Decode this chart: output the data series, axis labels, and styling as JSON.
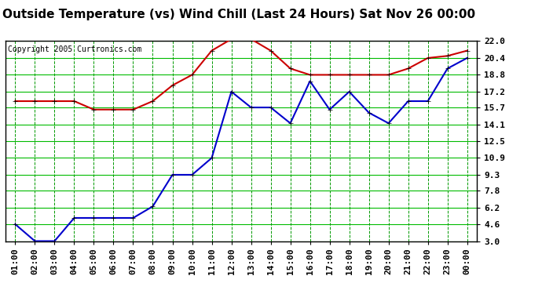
{
  "title": "Outside Temperature (vs) Wind Chill (Last 24 Hours) Sat Nov 26 00:00",
  "copyright": "Copyright 2005 Curtronics.com",
  "x_labels": [
    "01:00",
    "02:00",
    "03:00",
    "04:00",
    "05:00",
    "06:00",
    "07:00",
    "08:00",
    "09:00",
    "10:00",
    "11:00",
    "12:00",
    "13:00",
    "14:00",
    "15:00",
    "16:00",
    "17:00",
    "18:00",
    "19:00",
    "20:00",
    "21:00",
    "22:00",
    "23:00",
    "00:00"
  ],
  "red_data": [
    16.3,
    16.3,
    16.3,
    16.3,
    15.5,
    15.5,
    15.5,
    16.3,
    17.8,
    18.8,
    21.1,
    22.2,
    22.2,
    21.1,
    19.4,
    18.8,
    18.8,
    18.8,
    18.8,
    18.8,
    19.4,
    20.4,
    20.6,
    21.1
  ],
  "blue_data": [
    4.6,
    3.0,
    3.0,
    5.2,
    5.2,
    5.2,
    5.2,
    6.3,
    9.3,
    9.3,
    10.9,
    17.2,
    15.7,
    15.7,
    14.2,
    18.2,
    15.5,
    17.2,
    15.2,
    14.2,
    16.3,
    16.3,
    19.4,
    20.4
  ],
  "y_ticks": [
    3.0,
    4.6,
    6.2,
    7.8,
    9.3,
    10.9,
    12.5,
    14.1,
    15.7,
    17.2,
    18.8,
    20.4,
    22.0
  ],
  "y_min": 3.0,
  "y_max": 22.0,
  "bg_color": "#ffffff",
  "plot_bg_color": "#ffffff",
  "grid_h_color": "#00bb00",
  "grid_v_color": "#009900",
  "red_color": "#cc0000",
  "blue_color": "#0000cc",
  "title_fontsize": 11,
  "copyright_fontsize": 7,
  "tick_fontsize": 8,
  "border_color": "#000000"
}
